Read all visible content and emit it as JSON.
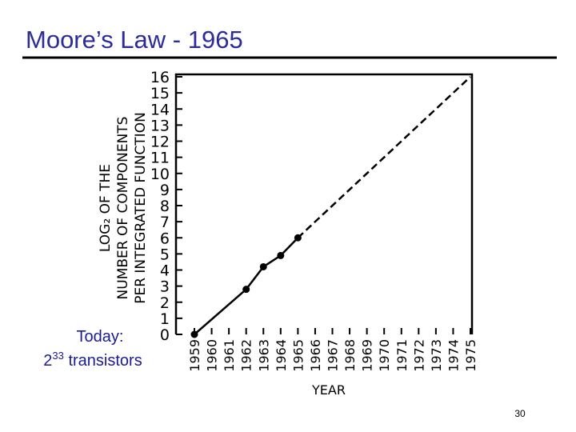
{
  "slide": {
    "title": "Moore’s Law - 1965",
    "annotation": {
      "line1": "Today:",
      "base": "2",
      "exponent": "33",
      "rest": " transistors"
    },
    "page_number": "30"
  },
  "chart_data": {
    "type": "line",
    "xlabel": "YEAR",
    "ylabel": [
      "LOG₂ OF THE",
      "NUMBER OF COMPONENTS",
      "PER INTEGRATED FUNCTION"
    ],
    "xlim": [
      1959,
      1975
    ],
    "xticks": [
      1959,
      1960,
      1961,
      1962,
      1963,
      1964,
      1965,
      1966,
      1967,
      1968,
      1969,
      1970,
      1971,
      1972,
      1973,
      1974,
      1975
    ],
    "ylim": [
      0,
      16
    ],
    "yticks": [
      0,
      1,
      2,
      3,
      4,
      5,
      6,
      7,
      8,
      9,
      10,
      11,
      12,
      13,
      14,
      15,
      16
    ],
    "grid": false,
    "series": [
      {
        "color": "#000000",
        "style": "solid",
        "markers": true,
        "x": [
          1959,
          1962,
          1963,
          1964,
          1965
        ],
        "values": [
          0,
          2.8,
          4.2,
          4.9,
          6
        ]
      },
      {
        "color": "#000000",
        "style": "dashed",
        "markers": false,
        "x": [
          1965,
          1975
        ],
        "values": [
          6,
          16
        ]
      }
    ]
  }
}
